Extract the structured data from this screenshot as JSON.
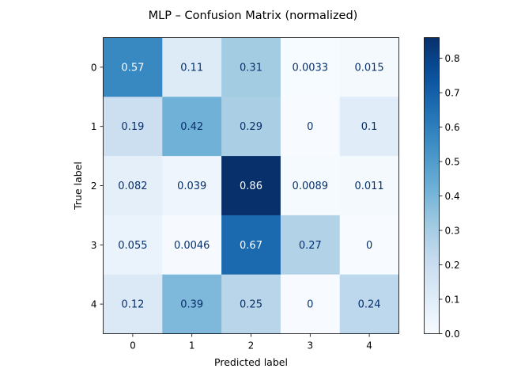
{
  "chart_data": {
    "type": "heatmap",
    "title": "MLP – Confusion Matrix (normalized)",
    "xlabel": "Predicted label",
    "ylabel": "True label",
    "x_categories": [
      "0",
      "1",
      "2",
      "3",
      "4"
    ],
    "y_categories": [
      "0",
      "1",
      "2",
      "3",
      "4"
    ],
    "values": [
      [
        0.57,
        0.11,
        0.31,
        0.0033,
        0.015
      ],
      [
        0.19,
        0.42,
        0.29,
        0,
        0.1
      ],
      [
        0.082,
        0.039,
        0.86,
        0.0089,
        0.011
      ],
      [
        0.055,
        0.0046,
        0.67,
        0.27,
        0
      ],
      [
        0.12,
        0.39,
        0.25,
        0,
        0.24
      ]
    ],
    "cell_labels": [
      [
        "0.57",
        "0.11",
        "0.31",
        "0.0033",
        "0.015"
      ],
      [
        "0.19",
        "0.42",
        "0.29",
        "0",
        "0.1"
      ],
      [
        "0.082",
        "0.039",
        "0.86",
        "0.0089",
        "0.011"
      ],
      [
        "0.055",
        "0.0046",
        "0.67",
        "0.27",
        "0"
      ],
      [
        "0.12",
        "0.39",
        "0.25",
        "0",
        "0.24"
      ]
    ],
    "colormap": "Blues",
    "vmin": 0,
    "vmax": 0.86,
    "colorbar": {
      "ticks": [
        0.0,
        0.1,
        0.2,
        0.3,
        0.4,
        0.5,
        0.6,
        0.7,
        0.8
      ],
      "tick_labels": [
        "0.0",
        "0.1",
        "0.2",
        "0.3",
        "0.4",
        "0.5",
        "0.6",
        "0.7",
        "0.8"
      ]
    },
    "grid": false,
    "colors": {
      "dark_text": "#08306b",
      "light_text": "#ffffff"
    }
  }
}
